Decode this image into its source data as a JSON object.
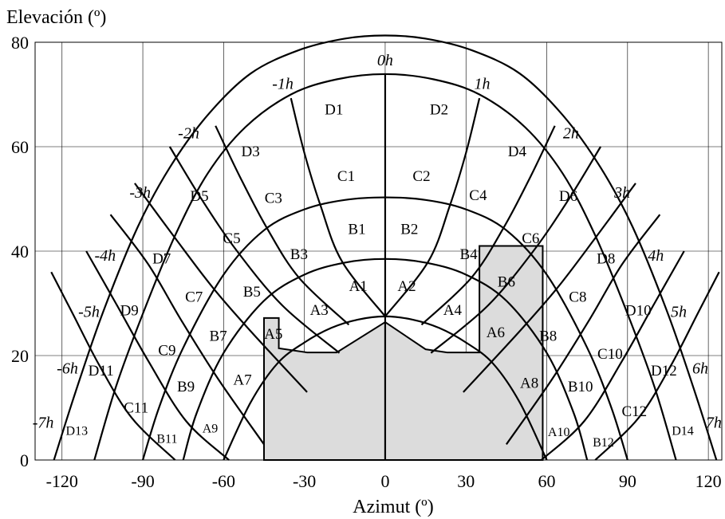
{
  "chart_data": {
    "type": "sun-path diagram",
    "ylabel": "Elevación (º)",
    "xlabel": "Azimut (º)",
    "xlim": [
      -130,
      125
    ],
    "ylim": [
      0,
      80
    ],
    "xticks": [
      -120,
      -90,
      -60,
      -30,
      0,
      30,
      60,
      90,
      120
    ],
    "yticks": [
      0,
      20,
      40,
      60,
      80
    ],
    "grid": true,
    "colors": {
      "horizon_fill": "#dcdcdc",
      "lines": "#000000"
    },
    "sun_paths": [
      {
        "name": "A",
        "points": [
          [
            -60,
            0
          ],
          [
            -50,
            11
          ],
          [
            -40,
            18.5
          ],
          [
            -30,
            22.5
          ],
          [
            -20,
            25.3
          ],
          [
            -10,
            26.9
          ],
          [
            0,
            27.5
          ],
          [
            10,
            26.9
          ],
          [
            20,
            25.3
          ],
          [
            30,
            22.5
          ],
          [
            40,
            18.5
          ],
          [
            50,
            11
          ],
          [
            60,
            0
          ]
        ]
      },
      {
        "name": "B",
        "points": [
          [
            -75,
            0
          ],
          [
            -70,
            9
          ],
          [
            -60,
            20.5
          ],
          [
            -45,
            30.5
          ],
          [
            -30,
            35.5
          ],
          [
            -15,
            37.8
          ],
          [
            0,
            38.5
          ],
          [
            15,
            37.8
          ],
          [
            30,
            35.5
          ],
          [
            45,
            30.5
          ],
          [
            60,
            20.5
          ],
          [
            70,
            9
          ],
          [
            75,
            0
          ]
        ]
      },
      {
        "name": "C",
        "points": [
          [
            -90,
            0
          ],
          [
            -84,
            10
          ],
          [
            -75,
            21.5
          ],
          [
            -60,
            35.5
          ],
          [
            -45,
            44
          ],
          [
            -30,
            48
          ],
          [
            -15,
            49.8
          ],
          [
            0,
            50.3
          ],
          [
            15,
            49.8
          ],
          [
            30,
            48
          ],
          [
            45,
            44
          ],
          [
            60,
            35.5
          ],
          [
            75,
            21.5
          ],
          [
            84,
            10
          ],
          [
            90,
            0
          ]
        ]
      },
      {
        "name": "D",
        "points": [
          [
            -108,
            0
          ],
          [
            -100,
            14
          ],
          [
            -90,
            28
          ],
          [
            -78,
            43
          ],
          [
            -66,
            54.8
          ],
          [
            -52,
            63.7
          ],
          [
            -35,
            70
          ],
          [
            -18,
            72.9
          ],
          [
            0,
            73.9
          ],
          [
            18,
            72.9
          ],
          [
            35,
            70
          ],
          [
            52,
            63.7
          ],
          [
            66,
            54.8
          ],
          [
            78,
            43
          ],
          [
            90,
            28
          ],
          [
            100,
            14
          ],
          [
            108,
            0
          ]
        ]
      },
      {
        "name": "E",
        "points": [
          [
            -123,
            0
          ],
          [
            -115,
            13
          ],
          [
            -105,
            28
          ],
          [
            -92,
            44.5
          ],
          [
            -80,
            56
          ],
          [
            -66,
            66
          ],
          [
            -50,
            74
          ],
          [
            -32,
            78.5
          ],
          [
            -15,
            80.7
          ],
          [
            0,
            81.3
          ],
          [
            15,
            80.7
          ],
          [
            32,
            78.5
          ],
          [
            50,
            74
          ],
          [
            66,
            66
          ],
          [
            80,
            56
          ],
          [
            92,
            44.5
          ],
          [
            105,
            28
          ],
          [
            115,
            13
          ],
          [
            123,
            0
          ]
        ]
      }
    ],
    "hour_lines": [
      {
        "name": "0h",
        "points": [
          [
            0,
            0
          ],
          [
            0,
            27.5
          ],
          [
            0,
            38.5
          ],
          [
            0,
            50.3
          ],
          [
            0,
            61.8
          ],
          [
            0,
            73.9
          ]
        ]
      },
      {
        "name": "1h",
        "points": [
          [
            0,
            27.5
          ],
          [
            16,
            38
          ],
          [
            24,
            48.7
          ],
          [
            30,
            58.8
          ],
          [
            35,
            69.3
          ]
        ]
      },
      {
        "name": "-1h",
        "points": [
          [
            0,
            27.5
          ],
          [
            -16,
            38
          ],
          [
            -24,
            48.7
          ],
          [
            -30,
            58.8
          ],
          [
            -35,
            69.3
          ]
        ]
      },
      {
        "name": "2h",
        "points": [
          [
            13.5,
            25.9
          ],
          [
            32,
            34.9
          ],
          [
            44,
            44.5
          ],
          [
            54,
            54.3
          ],
          [
            63,
            64
          ]
        ]
      },
      {
        "name": "-2h",
        "points": [
          [
            -13.5,
            25.9
          ],
          [
            -32,
            34.9
          ],
          [
            -44,
            44.5
          ],
          [
            -54,
            54.3
          ],
          [
            -63,
            64
          ]
        ]
      },
      {
        "name": "3h",
        "points": [
          [
            17,
            20.5
          ],
          [
            38,
            29.5
          ],
          [
            55,
            40
          ],
          [
            68,
            49.8
          ],
          [
            80,
            60
          ]
        ]
      },
      {
        "name": "-3h",
        "points": [
          [
            -17,
            20.5
          ],
          [
            -38,
            29.5
          ],
          [
            -55,
            40
          ],
          [
            -68,
            49.8
          ],
          [
            -80,
            60
          ]
        ]
      },
      {
        "name": "4h",
        "points": [
          [
            29,
            13
          ],
          [
            50,
            24.7
          ],
          [
            64,
            33
          ],
          [
            78,
            42.5
          ],
          [
            93,
            53
          ]
        ]
      },
      {
        "name": "-4h",
        "points": [
          [
            -29,
            13
          ],
          [
            -50,
            24.7
          ],
          [
            -64,
            33
          ],
          [
            -78,
            42.5
          ],
          [
            -93,
            53
          ]
        ]
      },
      {
        "name": "5h",
        "points": [
          [
            45,
            3
          ],
          [
            62,
            15.5
          ],
          [
            76,
            27
          ],
          [
            88,
            37.5
          ],
          [
            102,
            47
          ]
        ]
      },
      {
        "name": "-5h",
        "points": [
          [
            -45,
            3
          ],
          [
            -62,
            15.5
          ],
          [
            -76,
            27
          ],
          [
            -88,
            37.5
          ],
          [
            -102,
            47
          ]
        ]
      },
      {
        "name": "6h",
        "points": [
          [
            58,
            0
          ],
          [
            74,
            7.5
          ],
          [
            88,
            19
          ],
          [
            100,
            30
          ],
          [
            111,
            40
          ]
        ]
      },
      {
        "name": "-6h",
        "points": [
          [
            -58,
            0
          ],
          [
            -74,
            7.5
          ],
          [
            -88,
            19
          ],
          [
            -100,
            30
          ],
          [
            -111,
            40
          ]
        ]
      },
      {
        "name": "7h",
        "points": [
          [
            78,
            0
          ],
          [
            94,
            8
          ],
          [
            106,
            18
          ],
          [
            116,
            28
          ],
          [
            124,
            36
          ]
        ]
      },
      {
        "name": "-7h",
        "points": [
          [
            -78,
            0
          ],
          [
            -94,
            8
          ],
          [
            -106,
            18
          ],
          [
            -116,
            28
          ],
          [
            -124,
            36
          ]
        ]
      }
    ],
    "horizon_profile": [
      [
        -45,
        0
      ],
      [
        -45,
        27.2
      ],
      [
        -39.5,
        27.2
      ],
      [
        -39.5,
        21.4
      ],
      [
        -29,
        20.6
      ],
      [
        -18,
        20.6
      ],
      [
        0,
        26.4
      ],
      [
        15,
        21.2
      ],
      [
        23,
        20.6
      ],
      [
        35,
        20.6
      ],
      [
        35,
        41
      ],
      [
        58.5,
        41
      ],
      [
        58.5,
        0
      ]
    ],
    "hour_labels": [
      {
        "text": "0h",
        "x": 0,
        "y": 75.6
      },
      {
        "text": "1h",
        "x": 36,
        "y": 71.1
      },
      {
        "text": "-1h",
        "x": -38,
        "y": 71.1
      },
      {
        "text": "2h",
        "x": 69,
        "y": 61.6
      },
      {
        "text": "-2h",
        "x": -73,
        "y": 61.6
      },
      {
        "text": "3h",
        "x": 88,
        "y": 50.2
      },
      {
        "text": "-3h",
        "x": -91,
        "y": 50.2
      },
      {
        "text": "4h",
        "x": 100.5,
        "y": 38.2
      },
      {
        "text": "-4h",
        "x": -104,
        "y": 38.2
      },
      {
        "text": "5h",
        "x": 109,
        "y": 27.4
      },
      {
        "text": "-5h",
        "x": -110,
        "y": 27.4
      },
      {
        "text": "6h",
        "x": 117,
        "y": 16.6
      },
      {
        "text": "-6h",
        "x": -118,
        "y": 16.6
      },
      {
        "text": "7h",
        "x": 122,
        "y": 6.2
      },
      {
        "text": "-7h",
        "x": -127,
        "y": 6.2
      }
    ],
    "zone_labels": [
      {
        "text": "D1",
        "x": -19,
        "y": 66.2
      },
      {
        "text": "D2",
        "x": 20,
        "y": 66.2
      },
      {
        "text": "D3",
        "x": -50,
        "y": 58.2
      },
      {
        "text": "D4",
        "x": 49,
        "y": 58.2
      },
      {
        "text": "D5",
        "x": -69,
        "y": 49.6
      },
      {
        "text": "D6",
        "x": 68,
        "y": 49.6
      },
      {
        "text": "D7",
        "x": -83,
        "y": 37.6
      },
      {
        "text": "D8",
        "x": 82,
        "y": 37.6
      },
      {
        "text": "D9",
        "x": -95,
        "y": 27.7
      },
      {
        "text": "D10",
        "x": 94,
        "y": 27.7
      },
      {
        "text": "D11",
        "x": -105.5,
        "y": 16.2
      },
      {
        "text": "D12",
        "x": 103.5,
        "y": 16.2
      },
      {
        "text": "D13",
        "x": -114.5,
        "y": 4.8,
        "small": true
      },
      {
        "text": "D14",
        "x": 110.5,
        "y": 4.8,
        "small": true
      },
      {
        "text": "C1",
        "x": -14.5,
        "y": 53.4
      },
      {
        "text": "C2",
        "x": 13.5,
        "y": 53.4
      },
      {
        "text": "C3",
        "x": -41.5,
        "y": 49.2
      },
      {
        "text": "C4",
        "x": 34.5,
        "y": 49.8
      },
      {
        "text": "C5",
        "x": -57,
        "y": 41.5
      },
      {
        "text": "C6",
        "x": 54,
        "y": 41.5
      },
      {
        "text": "C7",
        "x": -71,
        "y": 30.3
      },
      {
        "text": "C8",
        "x": 71.5,
        "y": 30.3
      },
      {
        "text": "C9",
        "x": -81,
        "y": 20.1
      },
      {
        "text": "C10",
        "x": 83.5,
        "y": 19.4
      },
      {
        "text": "C11",
        "x": -92.5,
        "y": 9.1
      },
      {
        "text": "C12",
        "x": 92.5,
        "y": 8.4
      },
      {
        "text": "B1",
        "x": -10.5,
        "y": 43.3
      },
      {
        "text": "B2",
        "x": 9,
        "y": 43.3
      },
      {
        "text": "B3",
        "x": -32,
        "y": 38.5
      },
      {
        "text": "B4",
        "x": 31,
        "y": 38.5
      },
      {
        "text": "B5",
        "x": -49.5,
        "y": 31.3
      },
      {
        "text": "B6",
        "x": 45,
        "y": 33.2
      },
      {
        "text": "B7",
        "x": -62,
        "y": 22.8
      },
      {
        "text": "B8",
        "x": 60.5,
        "y": 22.8
      },
      {
        "text": "B9",
        "x": -74,
        "y": 13.1
      },
      {
        "text": "B10",
        "x": 72.5,
        "y": 13.1
      },
      {
        "text": "B11",
        "x": -81,
        "y": 3.3,
        "small": true
      },
      {
        "text": "B12",
        "x": 81,
        "y": 2.6,
        "small": true
      },
      {
        "text": "A1",
        "x": -10,
        "y": 32.4
      },
      {
        "text": "A2",
        "x": 8,
        "y": 32.4
      },
      {
        "text": "A3",
        "x": -24.5,
        "y": 27.8
      },
      {
        "text": "A4",
        "x": 25,
        "y": 27.8
      },
      {
        "text": "A5",
        "x": -41.5,
        "y": 23.2
      },
      {
        "text": "A6",
        "x": 41,
        "y": 23.5
      },
      {
        "text": "A7",
        "x": -53,
        "y": 14.4
      },
      {
        "text": "A8",
        "x": 53.5,
        "y": 13.8
      },
      {
        "text": "A9",
        "x": -65,
        "y": 5.3,
        "small": true
      },
      {
        "text": "A10",
        "x": 64.5,
        "y": 4.6,
        "small": true
      }
    ]
  }
}
